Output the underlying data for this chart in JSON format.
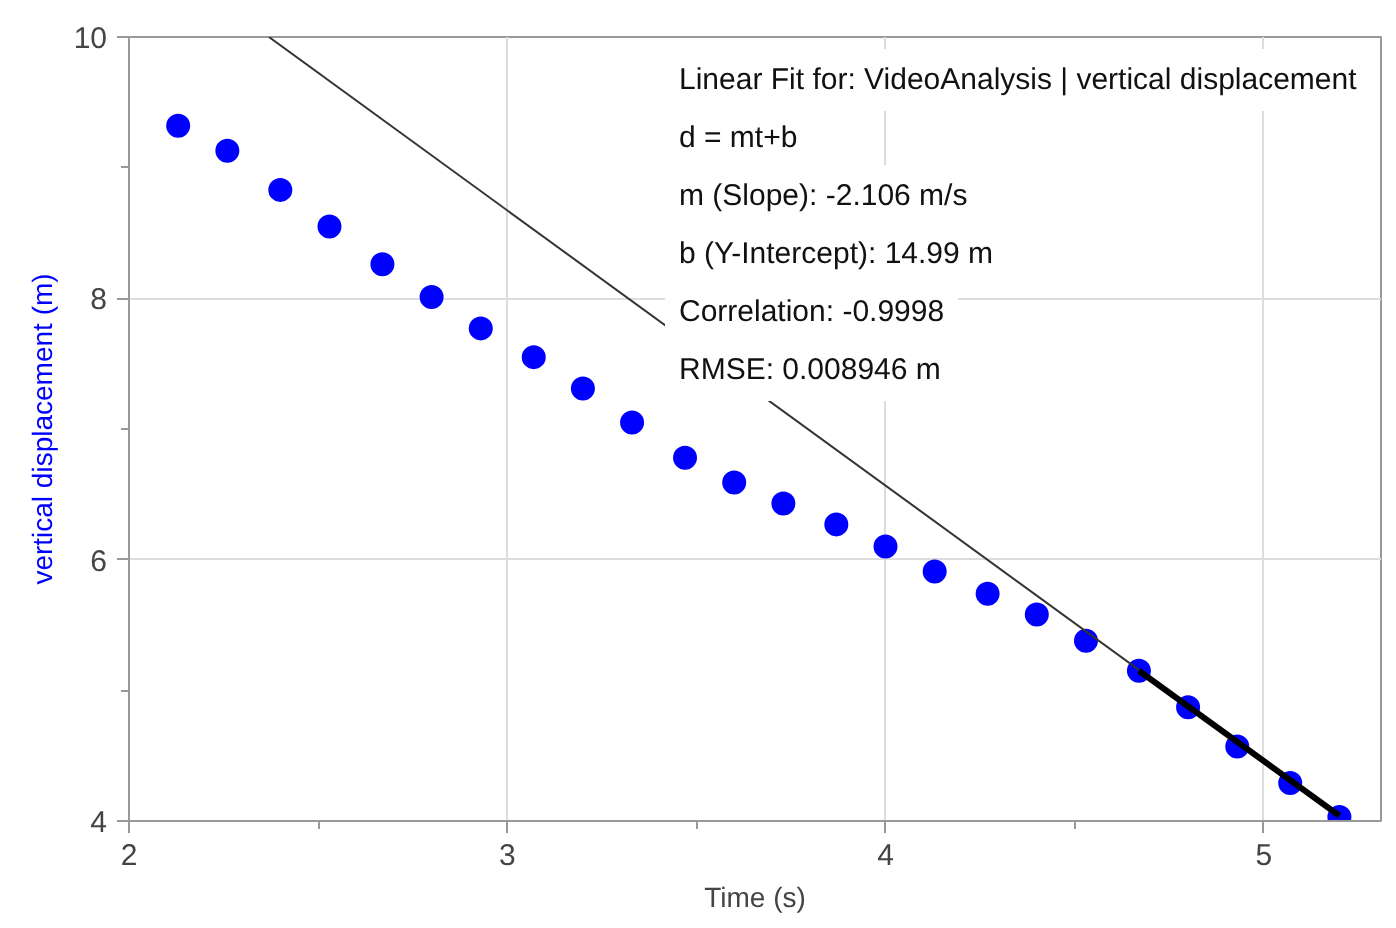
{
  "chart_data": {
    "type": "scatter",
    "xlabel": "Time (s)",
    "ylabel": "vertical displacement (m)",
    "xlim": [
      2,
      5.31
    ],
    "ylim": [
      4,
      10
    ],
    "xticks": [
      2,
      3,
      4,
      5
    ],
    "yticks": [
      4,
      6,
      8,
      10
    ],
    "grid": true,
    "series": [
      {
        "color": "#0000ff",
        "marker": "circle",
        "x": [
          2.13,
          2.26,
          2.4,
          2.53,
          2.67,
          2.8,
          2.93,
          3.07,
          3.2,
          3.33,
          3.47,
          3.6,
          3.73,
          3.87,
          4.0,
          4.13,
          4.27,
          4.4,
          4.53,
          4.67,
          4.8,
          4.93,
          5.07,
          5.2
        ],
        "values": [
          9.32,
          9.13,
          8.83,
          8.55,
          8.26,
          8.01,
          7.77,
          7.55,
          7.31,
          7.05,
          6.78,
          6.59,
          6.43,
          6.27,
          6.1,
          5.91,
          5.74,
          5.58,
          5.38,
          5.15,
          4.87,
          4.57,
          4.29,
          4.03
        ]
      },
      {
        "type": "line",
        "color": "#333333",
        "x": [
          2.37,
          5.2
        ],
        "values": [
          10.0,
          4.04
        ],
        "line_style": "solid"
      },
      {
        "type": "line",
        "color": "#000000",
        "x": [
          4.67,
          5.2
        ],
        "values": [
          5.15,
          4.04
        ],
        "line_style": "solid"
      }
    ],
    "annotations": [
      "Linear Fit for: VideoAnalysis | vertical displacement",
      "d = mt+b",
      "m (Slope): -2.106 m/s",
      "b (Y-Intercept): 14.99 m",
      "Correlation: -0.9998",
      "RMSE: 0.008946 m"
    ]
  }
}
